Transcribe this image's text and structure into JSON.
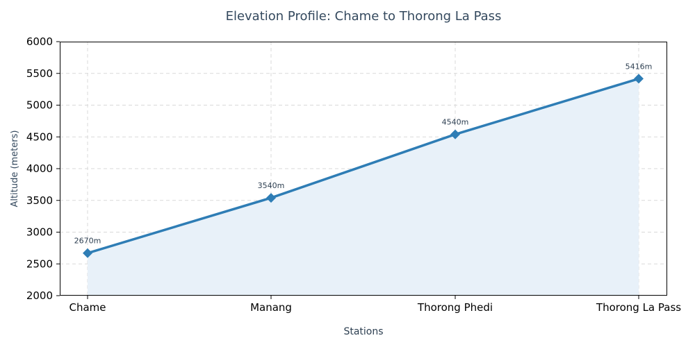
{
  "chart_data": {
    "type": "area",
    "title": "Elevation Profile: Chame to Thorong La Pass",
    "xlabel": "Stations",
    "ylabel": "Altitude (meters)",
    "categories": [
      "Chame",
      "Manang",
      "Thorong Phedi",
      "Thorong La Pass"
    ],
    "values": [
      2670,
      3540,
      4540,
      5416
    ],
    "data_labels": [
      "2670m",
      "3540m",
      "4540m",
      "5416m"
    ],
    "ylim": [
      2000,
      6000
    ],
    "yticks": [
      2000,
      2500,
      3000,
      3500,
      4000,
      4500,
      5000,
      5500,
      6000
    ],
    "grid": true,
    "colors": {
      "line": "#2e7db5",
      "fill": "#e8f1f9"
    }
  }
}
